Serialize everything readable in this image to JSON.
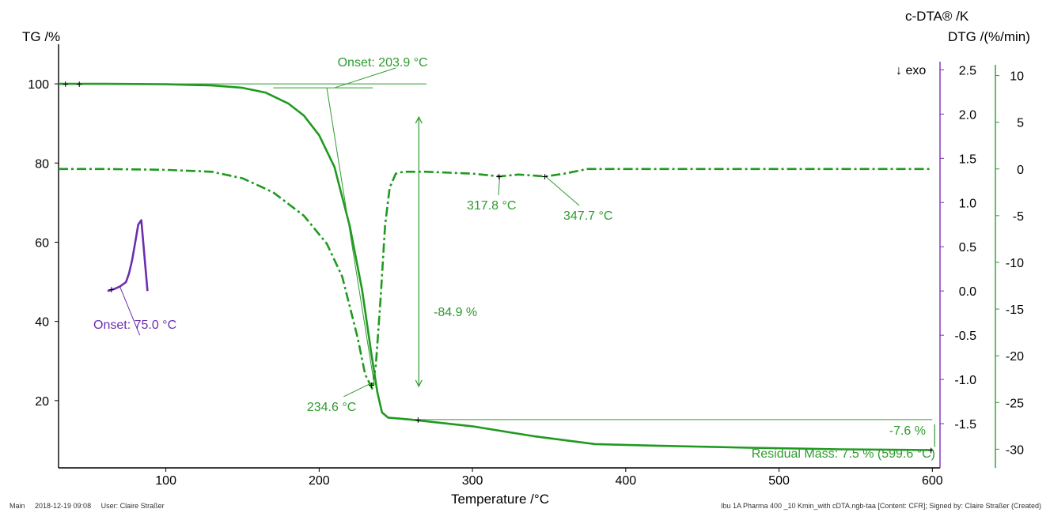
{
  "chart_data": {
    "type": "line",
    "x_axis": {
      "label": "Temperature /°C",
      "range": [
        30,
        605
      ],
      "ticks": [
        100,
        200,
        300,
        400,
        500,
        600
      ]
    },
    "y_axes": {
      "tg": {
        "label": "TG /%",
        "range": [
          3,
          108
        ],
        "ticks": [
          20,
          40,
          60,
          80,
          100
        ],
        "color": "#000000"
      },
      "cdta": {
        "label": "c-DTA® /K",
        "range": [
          -2.0,
          2.7
        ],
        "ticks": [
          "2.5",
          "2.0",
          "1.5",
          "1.0",
          "0.5",
          "0.0",
          "-0.5",
          "-1.0",
          "-1.5"
        ],
        "color": "#7b2fb5"
      },
      "dtg": {
        "label": "DTG /(%/min)",
        "range": [
          -32,
          12.5
        ],
        "ticks": [
          "10",
          "5",
          "0",
          "-5",
          "-10",
          "-15",
          "-20",
          "-25",
          "-30"
        ],
        "color": "#2e9b2e"
      }
    },
    "series": [
      {
        "key": "tg",
        "style": "solid",
        "color": "#1f9a1f",
        "x": [
          30,
          60,
          100,
          130,
          150,
          165,
          180,
          190,
          200,
          210,
          220,
          228,
          234,
          238,
          241,
          245,
          260,
          300,
          340,
          380,
          420,
          480,
          540,
          600
        ],
        "y": [
          100,
          100,
          99.9,
          99.6,
          99,
          97.8,
          95,
          92,
          87,
          79,
          64,
          48,
          32,
          22,
          17,
          15.7,
          15.2,
          13.5,
          11,
          9,
          8.6,
          8.1,
          7.7,
          7.5
        ]
      },
      {
        "key": "dtg",
        "style": "dashdot",
        "color": "#1f9a1f",
        "x": [
          30,
          60,
          100,
          130,
          150,
          170,
          190,
          205,
          215,
          225,
          230,
          234.6,
          237,
          240,
          243,
          246,
          250,
          255,
          270,
          300,
          317.8,
          330,
          347.7,
          360,
          375,
          400,
          450,
          500,
          550,
          600
        ],
        "y": [
          0,
          0,
          -0.1,
          -0.3,
          -1,
          -2.5,
          -5,
          -8,
          -11.5,
          -18,
          -22,
          -23.5,
          -21,
          -14,
          -6,
          -2,
          -0.5,
          -0.3,
          -0.3,
          -0.5,
          -0.8,
          -0.6,
          -0.8,
          -0.5,
          0,
          0,
          0,
          0,
          0,
          0
        ]
      },
      {
        "key": "cdta",
        "style": "solid",
        "color": "#6a2fb0",
        "x": [
          62,
          66,
          70,
          74,
          76,
          78,
          80,
          82,
          84,
          86,
          88
        ],
        "y": [
          0.0,
          0.02,
          0.05,
          0.1,
          0.2,
          0.35,
          0.55,
          0.75,
          0.8,
          0.4,
          0.0
        ]
      }
    ],
    "annotations": {
      "onset_tg": "Onset: 203.9 °C",
      "peak_dtg": "234.6 °C",
      "peak1": "317.8 °C",
      "peak2": "347.7 °C",
      "mass_step": "-84.9 %",
      "mass_step2": "-7.6 %",
      "residual": "Residual Mass: 7.5 % (599.6 °C)",
      "onset_dta": "Onset: 75.0 °C",
      "exo": "↓ exo"
    }
  },
  "footer": {
    "left": "Main     2018-12-19 09:08     User: Claire Straßer",
    "right": "Ibu 1A Pharma 400 _10 Kmin_with cDTA.ngb-taa [Content: CFR]; Signed by: Claire Straßer (Created)"
  }
}
